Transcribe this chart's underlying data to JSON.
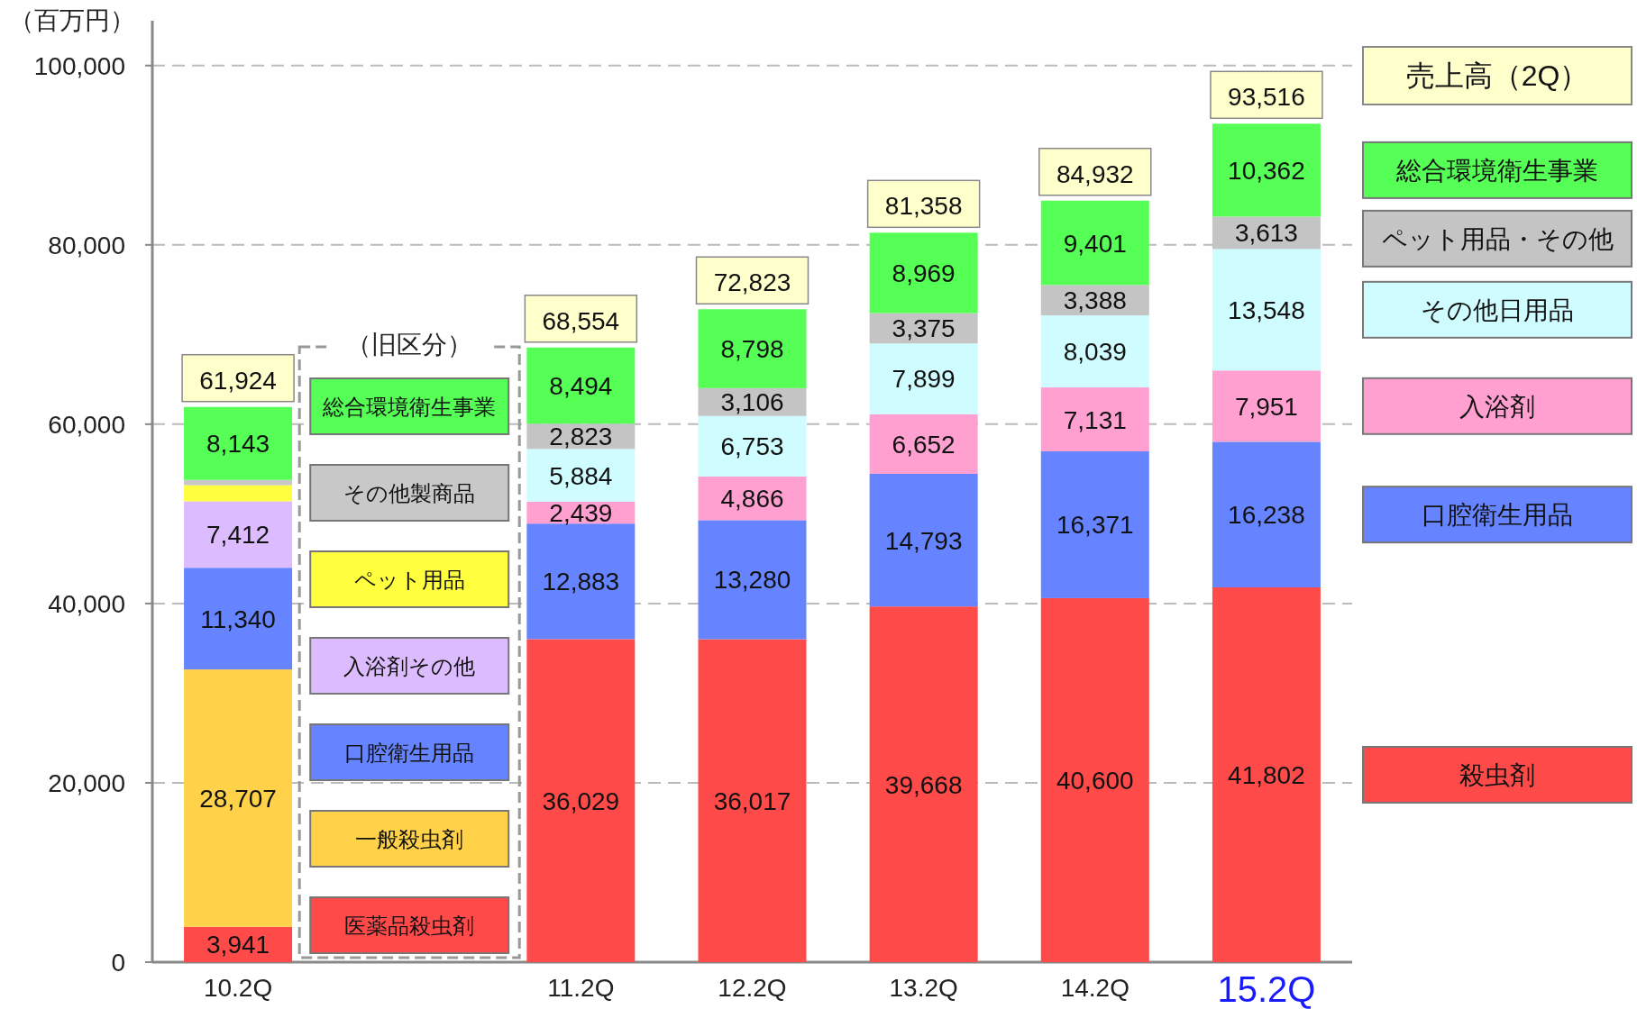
{
  "chart_data": {
    "type": "bar",
    "stacked": true,
    "ylabel": "（百万円）",
    "categories": [
      "10.2Q",
      null,
      "11.2Q",
      "12.2Q",
      "13.2Q",
      "14.2Q",
      "15.2Q"
    ],
    "ylim": [
      0,
      105000
    ],
    "yticks": [
      0,
      {
        "value": 20000,
        "label": "20,000"
      },
      {
        "value": 40000,
        "label": "40,000"
      },
      {
        "value": 60000,
        "label": "60,000"
      },
      {
        "value": 80000,
        "label": "80,000"
      },
      {
        "value": 100000,
        "label": "100,000"
      }
    ],
    "grid": "y",
    "legend": "right",
    "legend_title": "（旧区分）",
    "annotations": [
      "売上高（2Q）"
    ],
    "totals": [
      "61,924",
      null,
      "68,554",
      "72,823",
      "81,358",
      "84,932",
      "93,516"
    ],
    "series": [
      {
        "name": "医薬品殺虫剤",
        "color": "#ff4a4a",
        "values": [
          3941,
          null,
          null,
          null,
          null,
          null,
          null
        ],
        "value_labels": [
          "3,941",
          null,
          null,
          null,
          null,
          null,
          null
        ]
      },
      {
        "name": "一般殺虫剤",
        "color": "#ffd24a",
        "values": [
          28707,
          null,
          null,
          null,
          null,
          null,
          null
        ],
        "value_labels": [
          "28,707",
          null,
          null,
          null,
          null,
          null,
          null
        ]
      },
      {
        "name": "口腔衛生用品",
        "color": "#6684ff",
        "values": [
          11340,
          null,
          null,
          null,
          null,
          null,
          null
        ],
        "value_labels": [
          "11,340",
          null,
          null,
          null,
          null,
          null,
          null
        ]
      },
      {
        "name": "入浴剤その他",
        "color": "#dcbcff",
        "values": [
          7412,
          null,
          null,
          null,
          null,
          null,
          null
        ],
        "value_labels": [
          "7,412",
          null,
          null,
          null,
          null,
          null,
          null
        ]
      },
      {
        "name": "ペット用品",
        "color": "#ffff40",
        "values": [
          1800,
          null,
          null,
          null,
          null,
          null,
          null
        ],
        "value_labels": [
          null,
          null,
          null,
          null,
          null,
          null,
          null
        ]
      },
      {
        "name": "その他製商品",
        "color": "#c8c8c8",
        "values": [
          581,
          null,
          null,
          null,
          null,
          null,
          null
        ],
        "value_labels": [
          null,
          null,
          null,
          null,
          null,
          null,
          null
        ]
      },
      {
        "name": "総合環境衛生事業",
        "color": "#55ff55",
        "values": [
          8143,
          null,
          null,
          null,
          null,
          null,
          null
        ],
        "value_labels": [
          "8,143",
          null,
          null,
          null,
          null,
          null,
          null
        ]
      },
      {
        "name": "殺虫剤",
        "color": "#ff4a4a",
        "values": [
          null,
          null,
          36029,
          36017,
          39668,
          40600,
          41802
        ],
        "value_labels": [
          null,
          null,
          "36,029",
          "36,017",
          "39,668",
          "40,600",
          "41,802"
        ]
      },
      {
        "name": "口腔衛生用品",
        "color": "#6684ff",
        "values": [
          null,
          null,
          12883,
          13280,
          14793,
          16371,
          16238
        ],
        "value_labels": [
          null,
          null,
          "12,883",
          "13,280",
          "14,793",
          "16,371",
          "16,238"
        ]
      },
      {
        "name": "入浴剤",
        "color": "#ffa0d0",
        "values": [
          null,
          null,
          2439,
          4866,
          6652,
          7131,
          7951
        ],
        "value_labels": [
          null,
          null,
          "2,439",
          "4,866",
          "6,652",
          "7,131",
          "7,951"
        ]
      },
      {
        "name": "その他日用品",
        "color": "#cffcff",
        "values": [
          null,
          null,
          5884,
          6753,
          7899,
          8039,
          13548
        ],
        "value_labels": [
          null,
          null,
          "5,884",
          "6,753",
          "7,899",
          "8,039",
          "13,548"
        ]
      },
      {
        "name": "ペット用品・その他",
        "color": "#c4c4c4",
        "values": [
          null,
          null,
          2823,
          3106,
          3375,
          3388,
          3613
        ],
        "value_labels": [
          null,
          null,
          "2,823",
          "3,106",
          "3,375",
          "3,388",
          "3,613"
        ]
      },
      {
        "name": "総合環境衛生事業",
        "color": "#55ff55",
        "values": [
          null,
          null,
          8494,
          8798,
          8969,
          9401,
          10362
        ],
        "value_labels": [
          null,
          null,
          "8,494",
          "8,798",
          "8,969",
          "9,401",
          "10,362"
        ]
      }
    ]
  }
}
